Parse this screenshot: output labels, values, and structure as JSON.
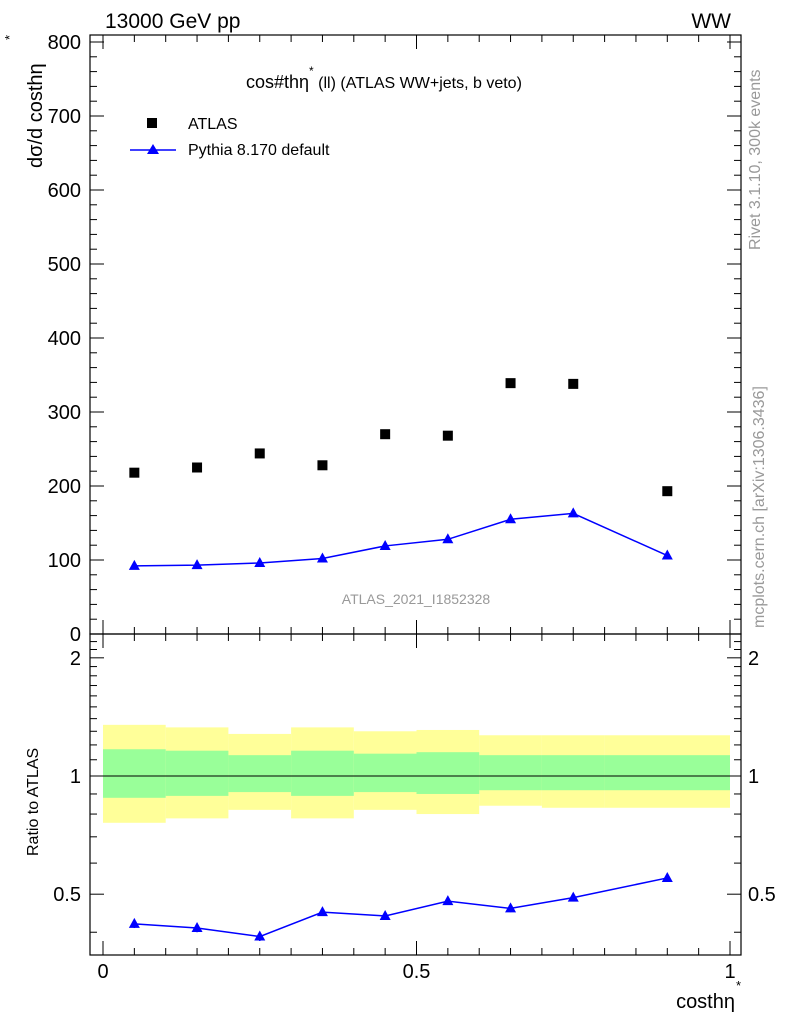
{
  "header": {
    "energy_label": "13000 GeV pp",
    "process_label": "WW"
  },
  "side_labels": {
    "rivet": "Rivet 3.1.10,  300k events",
    "mcplots": "mcplots.cern.ch [arXiv:1306.3436]"
  },
  "chart_data": [
    {
      "type": "scatter",
      "panel": "main",
      "title": "cos#thη* (ll) (ATLAS WW+jets, b veto)",
      "title_main": "cos#thη",
      "title_sup": "*",
      "title_rest": " (ll) (ATLAS WW+jets, b veto)",
      "ylabel": "dσ/d costhη",
      "ylabel_sup": "*",
      "xlim": [
        0,
        1
      ],
      "ylim": [
        0,
        810
      ],
      "yticks": [
        0,
        100,
        200,
        300,
        400,
        500,
        600,
        700,
        800
      ],
      "yticklabels": [
        "0",
        "100",
        "200",
        "300",
        "400",
        "500",
        "600",
        "700",
        "800"
      ],
      "watermark": "ATLAS_2021_I1852328",
      "legend_position": "top-left",
      "series": [
        {
          "name": "ATLAS",
          "style": "marker",
          "marker": "square",
          "color": "#000000",
          "x": [
            0.05,
            0.15,
            0.25,
            0.35,
            0.45,
            0.55,
            0.65,
            0.75,
            0.9
          ],
          "values": [
            218,
            225,
            244,
            228,
            270,
            268,
            339,
            338,
            193
          ]
        },
        {
          "name": "Pythia 8.170 default",
          "style": "line",
          "marker": "triangle",
          "color": "#0000ff",
          "x": [
            0.05,
            0.15,
            0.25,
            0.35,
            0.45,
            0.55,
            0.65,
            0.75,
            0.9
          ],
          "values": [
            92,
            93,
            96,
            102,
            119,
            128,
            155,
            163,
            106
          ]
        }
      ]
    },
    {
      "type": "area",
      "panel": "ratio",
      "ylabel": "Ratio to ATLAS",
      "xlabel": "costhη",
      "xlabel_sup": "*",
      "xlim": [
        0,
        1
      ],
      "ylim": [
        0.35,
        2.3
      ],
      "yscale": "log",
      "xticks": [
        0,
        0.5,
        1
      ],
      "xticklabels": [
        "0",
        "0.5",
        "1"
      ],
      "yticks": [
        0.5,
        1,
        2
      ],
      "yticklabels": [
        "0.5",
        "1",
        "2"
      ],
      "reference_line": 1,
      "bins": [
        [
          0.0,
          0.1
        ],
        [
          0.1,
          0.2
        ],
        [
          0.2,
          0.3
        ],
        [
          0.3,
          0.4
        ],
        [
          0.4,
          0.5
        ],
        [
          0.5,
          0.6
        ],
        [
          0.6,
          0.7
        ],
        [
          0.7,
          0.8
        ],
        [
          0.8,
          1.0
        ]
      ],
      "bands": [
        {
          "name": "total uncertainty",
          "color": "#ffff99",
          "low": [
            0.76,
            0.78,
            0.82,
            0.78,
            0.82,
            0.8,
            0.84,
            0.83,
            0.83
          ],
          "high": [
            1.35,
            1.33,
            1.28,
            1.33,
            1.3,
            1.31,
            1.27,
            1.27,
            1.27
          ]
        },
        {
          "name": "statistical uncertainty",
          "color": "#99ff99",
          "low": [
            0.88,
            0.89,
            0.91,
            0.89,
            0.91,
            0.9,
            0.92,
            0.92,
            0.92
          ],
          "high": [
            1.17,
            1.16,
            1.13,
            1.16,
            1.14,
            1.15,
            1.13,
            1.13,
            1.13
          ]
        }
      ],
      "series": [
        {
          "name": "Pythia 8.170 default",
          "color": "#0000ff",
          "x": [
            0.05,
            0.15,
            0.25,
            0.35,
            0.45,
            0.55,
            0.65,
            0.75,
            0.9
          ],
          "values": [
            0.42,
            0.41,
            0.39,
            0.45,
            0.44,
            0.48,
            0.46,
            0.49,
            0.55
          ],
          "errors": [
            0.01,
            0.01,
            0.01,
            0.01,
            0.01,
            0.01,
            0.01,
            0.01,
            0.005
          ]
        }
      ]
    }
  ]
}
